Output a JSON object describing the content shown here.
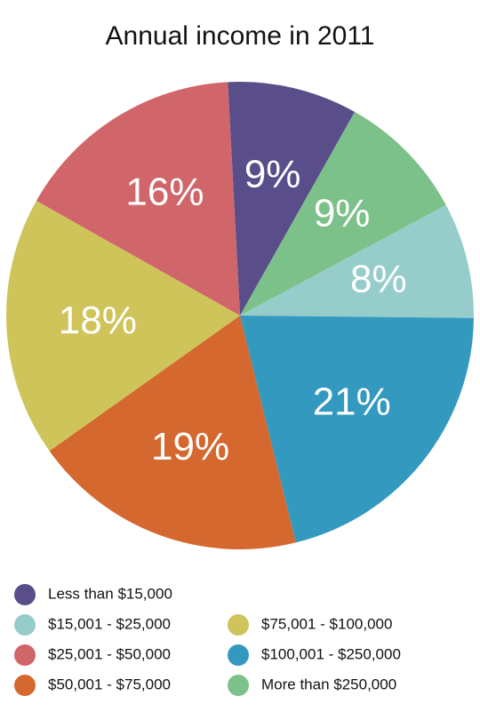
{
  "chart_data": {
    "type": "pie",
    "title": "Annual income in 2011",
    "categories": [
      "Less than $15,000",
      "More than $250,000",
      "$15,001 - $25,000",
      "$100,001 - $250,000",
      "$50,001 - $75,000",
      "$75,001 - $100,000",
      "$25,001 - $50,000"
    ],
    "values": [
      9,
      9,
      8,
      21,
      19,
      18,
      16
    ],
    "value_labels": [
      "9%",
      "9%",
      "8%",
      "21%",
      "19%",
      "18%",
      "16%"
    ],
    "colors": [
      "#5a4e8a",
      "#7cc08a",
      "#96cdcb",
      "#3399bf",
      "#d4682f",
      "#cfc45a",
      "#d0666a"
    ]
  }
}
